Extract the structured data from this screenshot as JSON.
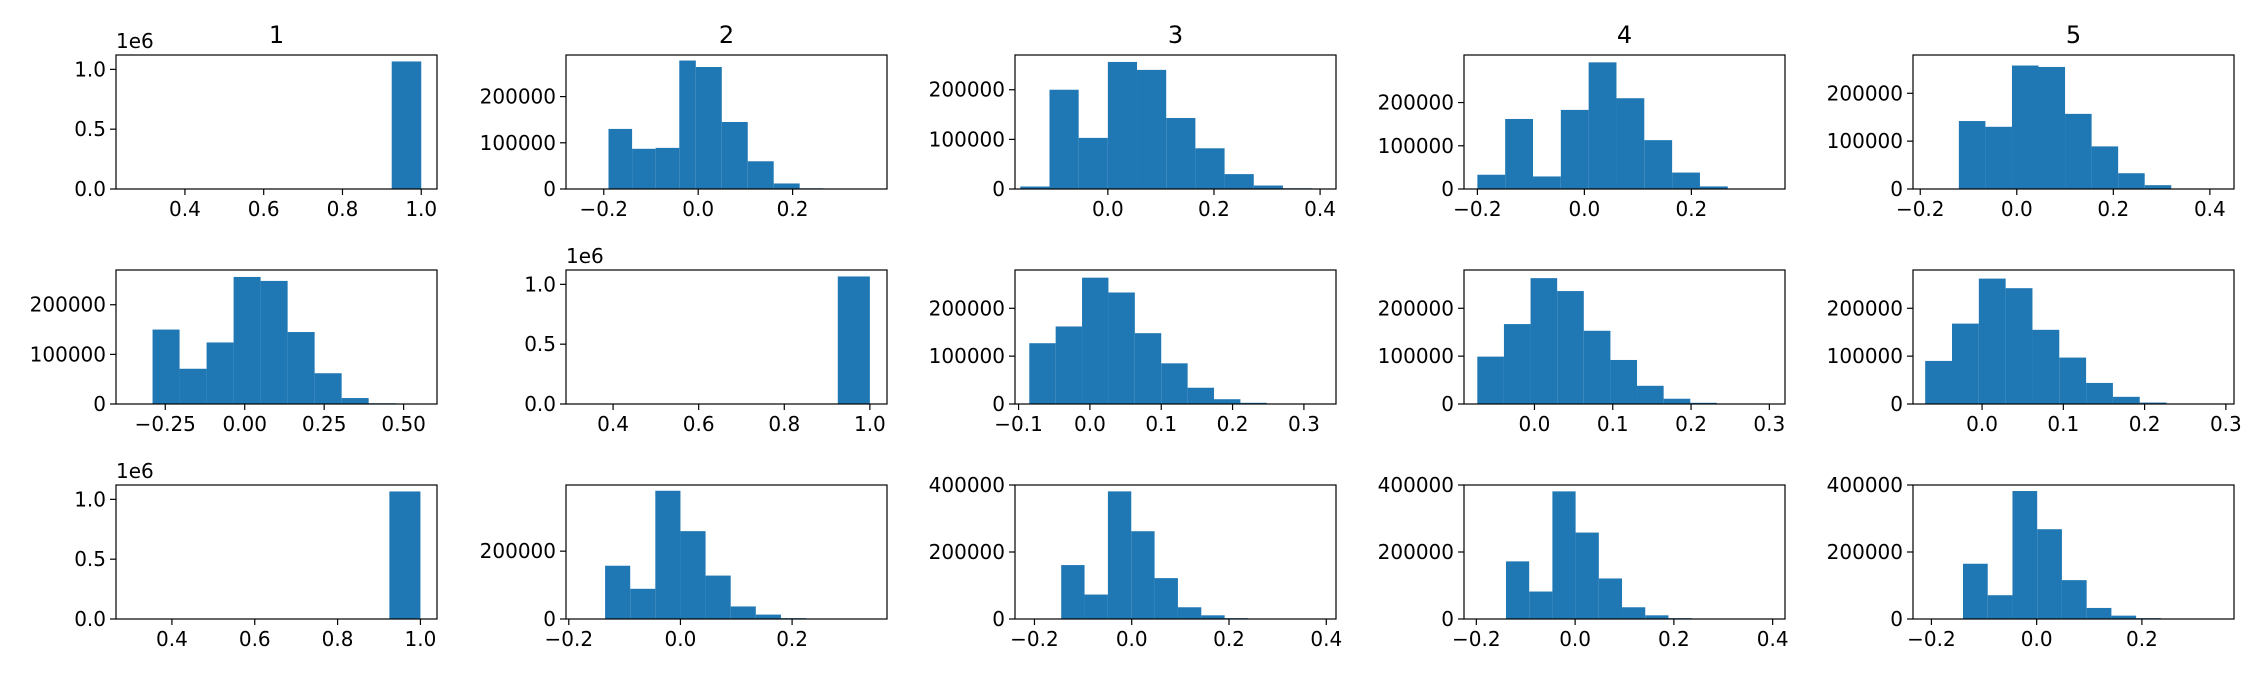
{
  "bar_color": "#1f77b4",
  "chart_data": [
    {
      "type": "bar",
      "title": "1",
      "row": 0,
      "col": 0,
      "offset_text": "1e6",
      "xlim": [
        0.225,
        1.04
      ],
      "ylim": [
        0,
        1.12
      ],
      "xticks": [
        0.4,
        0.6,
        0.8,
        1.0
      ],
      "xtick_labels": [
        "0.4",
        "0.6",
        "0.8",
        "1.0"
      ],
      "yticks": [
        0,
        0.5,
        1.0
      ],
      "ytick_labels": [
        "0.0",
        "0.5",
        "1.0"
      ],
      "bin_edges": [
        0.925,
        1.0
      ],
      "values": [
        1.066
      ]
    },
    {
      "type": "bar",
      "title": "2",
      "row": 0,
      "col": 1,
      "offset_text": "",
      "xlim": [
        -0.28,
        0.4
      ],
      "ylim": [
        0,
        290000
      ],
      "xticks": [
        -0.2,
        0.0,
        0.2
      ],
      "xtick_labels": [
        "−0.2",
        "0.0",
        "0.2"
      ],
      "yticks": [
        0,
        100000,
        200000
      ],
      "ytick_labels": [
        "0",
        "100000",
        "200000"
      ],
      "bin_edges": [
        -0.19,
        -0.14,
        -0.09,
        -0.04,
        -0.005,
        0.05,
        0.105,
        0.16,
        0.215,
        0.265,
        0.315
      ],
      "values": [
        130000,
        87000,
        89000,
        278000,
        264000,
        145000,
        60000,
        12000,
        1500,
        500
      ]
    },
    {
      "type": "bar",
      "title": "3",
      "row": 0,
      "col": 2,
      "offset_text": "",
      "xlim": [
        -0.175,
        0.43
      ],
      "ylim": [
        0,
        270000
      ],
      "xticks": [
        0.0,
        0.2,
        0.4
      ],
      "xtick_labels": [
        "0.0",
        "0.2",
        "0.4"
      ],
      "yticks": [
        0,
        100000,
        200000
      ],
      "ytick_labels": [
        "0",
        "100000",
        "200000"
      ],
      "bin_edges": [
        -0.165,
        -0.11,
        -0.055,
        0.0,
        0.055,
        0.11,
        0.165,
        0.22,
        0.275,
        0.33,
        0.385
      ],
      "values": [
        5000,
        200000,
        103000,
        256000,
        240000,
        143000,
        82000,
        30000,
        7000,
        1500
      ]
    },
    {
      "type": "bar",
      "title": "4",
      "row": 0,
      "col": 3,
      "offset_text": "",
      "xlim": [
        -0.225,
        0.375
      ],
      "ylim": [
        0,
        310000
      ],
      "xticks": [
        -0.2,
        0.0,
        0.2
      ],
      "xtick_labels": [
        "−0.2",
        "0.0",
        "0.2"
      ],
      "yticks": [
        0,
        100000,
        200000
      ],
      "ytick_labels": [
        "0",
        "100000",
        "200000"
      ],
      "bin_edges": [
        -0.2,
        -0.148,
        -0.096,
        -0.044,
        0.008,
        0.06,
        0.112,
        0.164,
        0.216,
        0.268,
        0.32
      ],
      "values": [
        33000,
        162000,
        29000,
        183000,
        293000,
        210000,
        113000,
        38000,
        6000,
        1000
      ]
    },
    {
      "type": "bar",
      "title": "5",
      "row": 0,
      "col": 4,
      "offset_text": "",
      "xlim": [
        -0.215,
        0.45
      ],
      "ylim": [
        0,
        280000
      ],
      "xticks": [
        -0.2,
        0.0,
        0.2,
        0.4
      ],
      "xtick_labels": [
        "−0.2",
        "0.0",
        "0.2",
        "0.4"
      ],
      "yticks": [
        0,
        100000,
        200000
      ],
      "ytick_labels": [
        "0",
        "100000",
        "200000"
      ],
      "bin_edges": [
        -0.12,
        -0.065,
        -0.01,
        0.045,
        0.1,
        0.155,
        0.21,
        0.265,
        0.32,
        0.375,
        0.43
      ],
      "values": [
        142000,
        130000,
        258000,
        255000,
        157000,
        89000,
        33000,
        8000,
        1000,
        300
      ]
    },
    {
      "type": "bar",
      "title": "",
      "row": 1,
      "col": 0,
      "offset_text": "",
      "xlim": [
        -0.405,
        0.605
      ],
      "ylim": [
        0,
        270000
      ],
      "xticks": [
        -0.25,
        0.0,
        0.25,
        0.5
      ],
      "xtick_labels": [
        "−0.25",
        "0.00",
        "0.25",
        "0.50"
      ],
      "yticks": [
        0,
        100000,
        200000
      ],
      "ytick_labels": [
        "0",
        "100000",
        "200000"
      ],
      "bin_edges": [
        -0.29,
        -0.205,
        -0.12,
        -0.035,
        0.05,
        0.135,
        0.22,
        0.305,
        0.39,
        0.475,
        0.56
      ],
      "values": [
        150000,
        71000,
        124000,
        256000,
        248000,
        145000,
        62000,
        12000,
        1500,
        300
      ]
    },
    {
      "type": "bar",
      "title": "",
      "row": 1,
      "col": 1,
      "offset_text": "1e6",
      "xlim": [
        0.29,
        1.04
      ],
      "ylim": [
        0,
        1.12
      ],
      "xticks": [
        0.4,
        0.6,
        0.8,
        1.0
      ],
      "xtick_labels": [
        "0.4",
        "0.6",
        "0.8",
        "1.0"
      ],
      "yticks": [
        0,
        0.5,
        1.0
      ],
      "ytick_labels": [
        "0.0",
        "0.5",
        "1.0"
      ],
      "bin_edges": [
        0.925,
        1.0
      ],
      "values": [
        1.066
      ]
    },
    {
      "type": "bar",
      "title": "",
      "row": 1,
      "col": 2,
      "offset_text": "",
      "xlim": [
        -0.105,
        0.345
      ],
      "ylim": [
        0,
        280000
      ],
      "xticks": [
        -0.1,
        0.0,
        0.1,
        0.2,
        0.3
      ],
      "xtick_labels": [
        "−0.1",
        "0.0",
        "0.1",
        "0.2",
        "0.3"
      ],
      "yticks": [
        0,
        100000,
        200000
      ],
      "ytick_labels": [
        "0",
        "100000",
        "200000"
      ],
      "bin_edges": [
        -0.085,
        -0.048,
        -0.011,
        0.026,
        0.063,
        0.1,
        0.137,
        0.174,
        0.211,
        0.248,
        0.285
      ],
      "values": [
        127000,
        162000,
        264000,
        233000,
        148000,
        85000,
        34000,
        10000,
        2500,
        500
      ]
    },
    {
      "type": "bar",
      "title": "",
      "row": 1,
      "col": 3,
      "offset_text": "",
      "xlim": [
        -0.09,
        0.32
      ],
      "ylim": [
        0,
        280000
      ],
      "xticks": [
        0.0,
        0.1,
        0.2,
        0.3
      ],
      "xtick_labels": [
        "0.0",
        "0.1",
        "0.2",
        "0.3"
      ],
      "yticks": [
        0,
        100000,
        200000
      ],
      "ytick_labels": [
        "0",
        "100000",
        "200000"
      ],
      "bin_edges": [
        -0.073,
        -0.039,
        -0.005,
        0.029,
        0.063,
        0.097,
        0.131,
        0.165,
        0.199,
        0.233,
        0.267
      ],
      "values": [
        99000,
        167000,
        263000,
        236000,
        153000,
        92000,
        38000,
        11000,
        2500,
        500
      ]
    },
    {
      "type": "bar",
      "title": "",
      "row": 1,
      "col": 4,
      "offset_text": "",
      "xlim": [
        -0.085,
        0.31
      ],
      "ylim": [
        0,
        280000
      ],
      "xticks": [
        0.0,
        0.1,
        0.2,
        0.3
      ],
      "xtick_labels": [
        "0.0",
        "0.1",
        "0.2",
        "0.3"
      ],
      "yticks": [
        0,
        100000,
        200000
      ],
      "ytick_labels": [
        "0",
        "100000",
        "200000"
      ],
      "bin_edges": [
        -0.07,
        -0.037,
        -0.004,
        0.029,
        0.062,
        0.095,
        0.128,
        0.161,
        0.194,
        0.227,
        0.26
      ],
      "values": [
        90000,
        168000,
        262000,
        242000,
        155000,
        97000,
        44000,
        15000,
        3000,
        500
      ]
    },
    {
      "type": "bar",
      "title": "",
      "row": 2,
      "col": 0,
      "offset_text": "1e6",
      "xlim": [
        0.265,
        1.04
      ],
      "ylim": [
        0,
        1.12
      ],
      "xticks": [
        0.4,
        0.6,
        0.8,
        1.0
      ],
      "xtick_labels": [
        "0.4",
        "0.6",
        "0.8",
        "1.0"
      ],
      "yticks": [
        0,
        0.5,
        1.0
      ],
      "ytick_labels": [
        "0.0",
        "0.5",
        "1.0"
      ],
      "bin_edges": [
        0.925,
        1.0
      ],
      "values": [
        1.066
      ]
    },
    {
      "type": "bar",
      "title": "",
      "row": 2,
      "col": 1,
      "offset_text": "",
      "xlim": [
        -0.205,
        0.37
      ],
      "ylim": [
        0,
        395000
      ],
      "xticks": [
        -0.2,
        0.0,
        0.2
      ],
      "xtick_labels": [
        "−0.2",
        "0.0",
        "0.2"
      ],
      "yticks": [
        0,
        200000
      ],
      "ytick_labels": [
        "0",
        "200000"
      ],
      "bin_edges": [
        -0.135,
        -0.09,
        -0.045,
        0.0,
        0.045,
        0.09,
        0.135,
        0.18,
        0.225,
        0.27,
        0.315
      ],
      "values": [
        157000,
        89000,
        378000,
        259000,
        128000,
        37000,
        13000,
        2500,
        600,
        200
      ]
    },
    {
      "type": "bar",
      "title": "",
      "row": 2,
      "col": 2,
      "offset_text": "",
      "xlim": [
        -0.24,
        0.42
      ],
      "ylim": [
        0,
        400000
      ],
      "xticks": [
        -0.2,
        0.0,
        0.2,
        0.4
      ],
      "xtick_labels": [
        "−0.2",
        "0.0",
        "0.2",
        "0.4"
      ],
      "yticks": [
        0,
        200000,
        400000
      ],
      "ytick_labels": [
        "0",
        "200000",
        "400000"
      ],
      "bin_edges": [
        -0.145,
        -0.097,
        -0.049,
        -0.001,
        0.047,
        0.095,
        0.143,
        0.191,
        0.239,
        0.287,
        0.335
      ],
      "values": [
        161000,
        73000,
        381000,
        262000,
        122000,
        35000,
        11000,
        2500,
        600,
        200
      ]
    },
    {
      "type": "bar",
      "title": "",
      "row": 2,
      "col": 3,
      "offset_text": "",
      "xlim": [
        -0.225,
        0.425
      ],
      "ylim": [
        0,
        400000
      ],
      "xticks": [
        -0.2,
        0.0,
        0.2,
        0.4
      ],
      "xtick_labels": [
        "−0.2",
        "0.0",
        "0.2",
        "0.4"
      ],
      "yticks": [
        0,
        200000,
        400000
      ],
      "ytick_labels": [
        "0",
        "200000",
        "400000"
      ],
      "bin_edges": [
        -0.14,
        -0.093,
        -0.046,
        0.001,
        0.048,
        0.095,
        0.142,
        0.189,
        0.236,
        0.283,
        0.33
      ],
      "values": [
        172000,
        82000,
        381000,
        258000,
        121000,
        35000,
        11000,
        2500,
        600,
        200
      ]
    },
    {
      "type": "bar",
      "title": "",
      "row": 2,
      "col": 4,
      "offset_text": "",
      "xlim": [
        -0.235,
        0.375
      ],
      "ylim": [
        0,
        400000
      ],
      "xticks": [
        -0.2,
        0.0,
        0.2
      ],
      "xtick_labels": [
        "−0.2",
        "0.0",
        "0.2"
      ],
      "yticks": [
        0,
        200000,
        400000
      ],
      "ytick_labels": [
        "0",
        "200000",
        "400000"
      ],
      "bin_edges": [
        -0.14,
        -0.093,
        -0.046,
        0.001,
        0.048,
        0.095,
        0.142,
        0.189,
        0.236,
        0.283,
        0.33
      ],
      "values": [
        165000,
        71000,
        382000,
        268000,
        116000,
        33000,
        10000,
        2500,
        600,
        200
      ]
    }
  ]
}
